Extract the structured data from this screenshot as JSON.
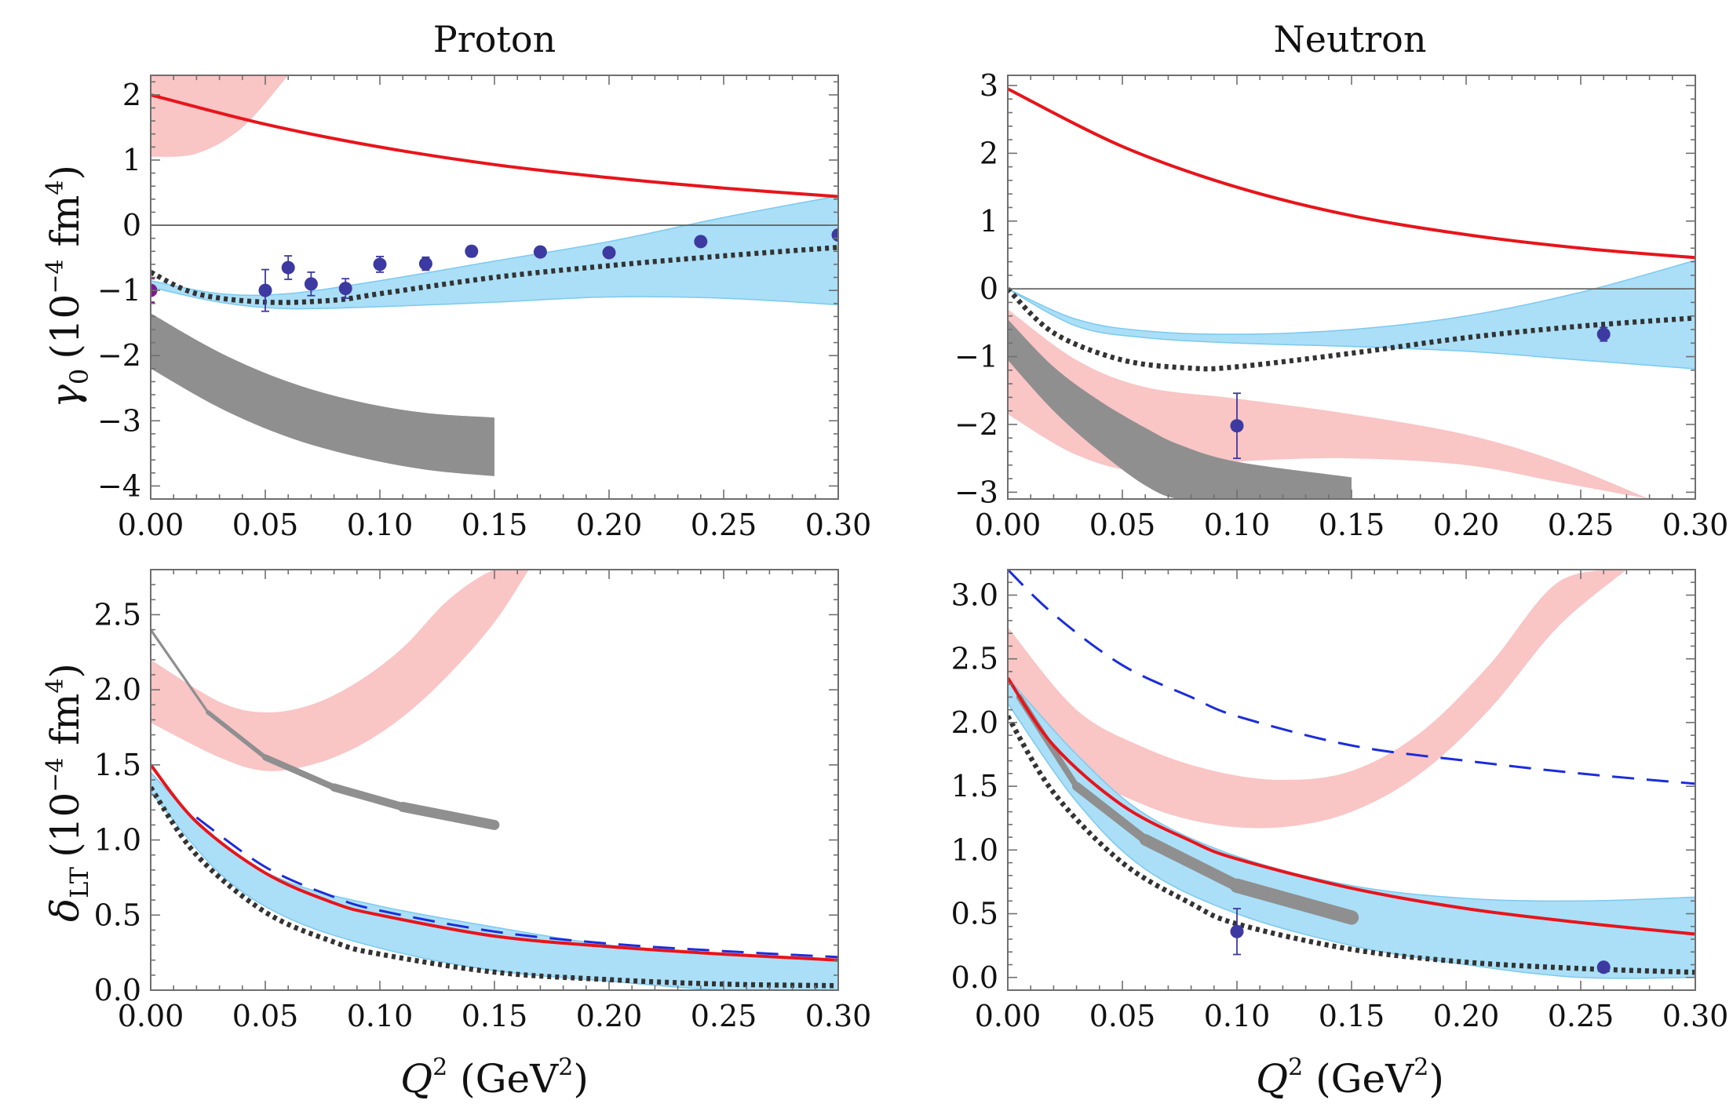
{
  "colors": {
    "theory_red": "#e8141b",
    "pink_band": "#f9c5c5",
    "blue_band": "#aadff7",
    "blue_band_edge": "#7cc9ef",
    "gray_band": "#8f8f8f",
    "dotted": "#333333",
    "dashed_blue": "#1b2ddc",
    "data_points": "#3c3aa0",
    "data_point_special": "#80198e",
    "zero_line": "#666666"
  },
  "figure": {
    "titles": [
      "Proton",
      "Neutron"
    ],
    "ylabel_top": {
      "sym": "γ",
      "sub": "0",
      "units": "(10",
      "exp": "−4",
      "units2": " fm",
      "exp2": "4",
      "close": ")"
    },
    "ylabel_bottom": {
      "sym": "δ",
      "sub": "LT",
      "units": "(10",
      "exp": "−4",
      "units2": " fm",
      "exp2": "4",
      "close": ")"
    },
    "xlabel": {
      "sym": "Q",
      "exp": "2",
      "units": " (GeV",
      "exp2": "2",
      "close": ")"
    }
  },
  "chart_data": [
    {
      "id": "proton-gamma0",
      "type": "line",
      "title": "Proton",
      "xlim": [
        0,
        0.3
      ],
      "ylim": [
        -4.2,
        2.3
      ],
      "xticks": [
        0,
        0.05,
        0.1,
        0.15,
        0.2,
        0.25,
        0.3
      ],
      "xtick_labels": [
        "0.00",
        "0.05",
        "0.10",
        "0.15",
        "0.20",
        "0.25",
        "0.30"
      ],
      "yticks": [
        -4,
        -3,
        -2,
        -1,
        0,
        1,
        2
      ],
      "ytick_labels": [
        "−4",
        "−3",
        "−2",
        "−1",
        "0",
        "1",
        "2"
      ],
      "zero_line": true,
      "bands": [
        {
          "name": "pink",
          "x": [
            0,
            0.02,
            0.04,
            0.06
          ],
          "lower": [
            1.05,
            1.1,
            1.5,
            2.3
          ],
          "upper": [
            2.3,
            2.3,
            2.3,
            2.3
          ]
        },
        {
          "name": "gray",
          "x": [
            0,
            0.03,
            0.06,
            0.09,
            0.12,
            0.15
          ],
          "lower": [
            -2.2,
            -2.8,
            -3.25,
            -3.55,
            -3.75,
            -3.85
          ],
          "upper": [
            -1.35,
            -1.95,
            -2.4,
            -2.7,
            -2.88,
            -2.95
          ]
        },
        {
          "name": "blue",
          "x": [
            0,
            0.03,
            0.06,
            0.1,
            0.15,
            0.2,
            0.25,
            0.3
          ],
          "lower": [
            -0.95,
            -1.18,
            -1.28,
            -1.25,
            -1.18,
            -1.1,
            -1.12,
            -1.22
          ],
          "upper": [
            -0.85,
            -1.05,
            -1.05,
            -0.85,
            -0.55,
            -0.25,
            0.12,
            0.45
          ]
        }
      ],
      "series": [
        {
          "name": "red-solid",
          "style": "solid",
          "x": [
            0,
            0.05,
            0.1,
            0.15,
            0.2,
            0.25,
            0.3
          ],
          "y": [
            2.0,
            1.55,
            1.2,
            0.93,
            0.73,
            0.57,
            0.44
          ]
        },
        {
          "name": "black-dotted",
          "style": "dotted",
          "x": [
            0,
            0.02,
            0.05,
            0.08,
            0.1,
            0.15,
            0.2,
            0.25,
            0.3
          ],
          "y": [
            -0.72,
            -1.05,
            -1.18,
            -1.15,
            -1.05,
            -0.8,
            -0.62,
            -0.47,
            -0.34
          ]
        }
      ],
      "points": [
        {
          "x": 0.0,
          "y": -1.0,
          "err": 0.18,
          "special": true
        },
        {
          "x": 0.05,
          "y": -1.0,
          "err": 0.32
        },
        {
          "x": 0.06,
          "y": -0.65,
          "err": 0.18
        },
        {
          "x": 0.07,
          "y": -0.9,
          "err": 0.18
        },
        {
          "x": 0.085,
          "y": -0.97,
          "err": 0.15
        },
        {
          "x": 0.1,
          "y": -0.6,
          "err": 0.12
        },
        {
          "x": 0.12,
          "y": -0.59,
          "err": 0.1
        },
        {
          "x": 0.14,
          "y": -0.4,
          "err": 0.08
        },
        {
          "x": 0.17,
          "y": -0.41,
          "err": 0.06
        },
        {
          "x": 0.2,
          "y": -0.42,
          "err": 0.05
        },
        {
          "x": 0.24,
          "y": -0.25,
          "err": 0.05
        },
        {
          "x": 0.3,
          "y": -0.15,
          "err": 0.05
        }
      ]
    },
    {
      "id": "neutron-gamma0",
      "type": "line",
      "title": "Neutron",
      "xlim": [
        0,
        0.3
      ],
      "ylim": [
        -3.1,
        3.15
      ],
      "xticks": [
        0,
        0.05,
        0.1,
        0.15,
        0.2,
        0.25,
        0.3
      ],
      "xtick_labels": [
        "0.00",
        "0.05",
        "0.10",
        "0.15",
        "0.20",
        "0.25",
        "0.30"
      ],
      "yticks": [
        -3,
        -2,
        -1,
        0,
        1,
        2,
        3
      ],
      "ytick_labels": [
        "−3",
        "−2",
        "−1",
        "0",
        "1",
        "2",
        "3"
      ],
      "zero_line": true,
      "bands": [
        {
          "name": "pink",
          "x": [
            0,
            0.03,
            0.06,
            0.1,
            0.15,
            0.2,
            0.24,
            0.28
          ],
          "lower": [
            -1.85,
            -2.45,
            -2.7,
            -2.55,
            -2.5,
            -2.6,
            -2.85,
            -3.1
          ],
          "upper": [
            -0.3,
            -1.05,
            -1.45,
            -1.62,
            -1.85,
            -2.15,
            -2.55,
            -3.1
          ]
        },
        {
          "name": "gray",
          "x": [
            0,
            0.02,
            0.04,
            0.06,
            0.075,
            0.1,
            0.15
          ],
          "lower": [
            -1.05,
            -1.8,
            -2.4,
            -2.9,
            -3.1,
            -3.1,
            -3.1
          ],
          "upper": [
            -0.45,
            -1.15,
            -1.65,
            -2.05,
            -2.3,
            -2.55,
            -2.78
          ]
        },
        {
          "name": "blue",
          "x": [
            0,
            0.03,
            0.06,
            0.1,
            0.15,
            0.2,
            0.25,
            0.3
          ],
          "lower": [
            0,
            -0.55,
            -0.72,
            -0.8,
            -0.85,
            -0.92,
            -1.05,
            -1.18
          ],
          "upper": [
            0,
            -0.45,
            -0.62,
            -0.67,
            -0.6,
            -0.4,
            -0.05,
            0.42
          ]
        }
      ],
      "series": [
        {
          "name": "red-solid",
          "style": "solid",
          "x": [
            0,
            0.05,
            0.1,
            0.15,
            0.2,
            0.25,
            0.3
          ],
          "y": [
            2.95,
            2.1,
            1.5,
            1.08,
            0.8,
            0.6,
            0.46
          ]
        },
        {
          "name": "black-dotted",
          "style": "dotted",
          "x": [
            0,
            0.02,
            0.05,
            0.08,
            0.1,
            0.15,
            0.2,
            0.25,
            0.3
          ],
          "y": [
            0,
            -0.65,
            -1.05,
            -1.17,
            -1.15,
            -0.95,
            -0.72,
            -0.55,
            -0.43
          ]
        }
      ],
      "points": [
        {
          "x": 0.1,
          "y": -2.02,
          "err": 0.48
        },
        {
          "x": 0.26,
          "y": -0.67,
          "err": 0.1
        }
      ]
    },
    {
      "id": "proton-deltaLT",
      "type": "line",
      "title": "",
      "xlim": [
        0,
        0.3
      ],
      "ylim": [
        0,
        2.8
      ],
      "xticks": [
        0,
        0.05,
        0.1,
        0.15,
        0.2,
        0.25,
        0.3
      ],
      "xtick_labels": [
        "0.00",
        "0.05",
        "0.10",
        "0.15",
        "0.20",
        "0.25",
        "0.30"
      ],
      "yticks": [
        0,
        0.5,
        1,
        1.5,
        2,
        2.5
      ],
      "ytick_labels": [
        "0.0",
        "0.5",
        "1.0",
        "1.5",
        "2.0",
        "2.5"
      ],
      "zero_line": false,
      "bands": [
        {
          "name": "pink",
          "x": [
            0,
            0.03,
            0.05,
            0.07,
            0.09,
            0.11,
            0.13,
            0.15,
            0.165
          ],
          "lower": [
            1.78,
            1.55,
            1.46,
            1.5,
            1.62,
            1.82,
            2.1,
            2.45,
            2.8
          ],
          "upper": [
            2.2,
            1.92,
            1.85,
            1.9,
            2.05,
            2.28,
            2.6,
            2.8,
            2.8
          ]
        },
        {
          "name": "blue",
          "x": [
            0,
            0.03,
            0.06,
            0.1,
            0.15,
            0.2,
            0.25,
            0.3
          ],
          "lower": [
            1.32,
            0.78,
            0.48,
            0.28,
            0.13,
            0.06,
            0.0,
            0.0
          ],
          "upper": [
            1.45,
            0.98,
            0.72,
            0.56,
            0.42,
            0.3,
            0.24,
            0.2
          ]
        }
      ],
      "thick_lines": [
        {
          "name": "gray-band-line",
          "x": [
            0,
            0.025,
            0.05,
            0.08,
            0.11,
            0.15
          ],
          "y": [
            2.4,
            1.85,
            1.55,
            1.35,
            1.22,
            1.1
          ],
          "width_start": 2,
          "width_end": 14
        }
      ],
      "series": [
        {
          "name": "red-solid",
          "style": "solid",
          "x": [
            0,
            0.02,
            0.05,
            0.08,
            0.1,
            0.15,
            0.2,
            0.25,
            0.3
          ],
          "y": [
            1.5,
            1.12,
            0.78,
            0.58,
            0.5,
            0.36,
            0.29,
            0.24,
            0.2
          ]
        },
        {
          "name": "blue-dashed",
          "style": "dashed",
          "x": [
            0.02,
            0.05,
            0.08,
            0.1,
            0.15,
            0.2,
            0.25,
            0.3
          ],
          "y": [
            1.15,
            0.82,
            0.62,
            0.53,
            0.39,
            0.31,
            0.26,
            0.22
          ]
        },
        {
          "name": "black-dotted",
          "style": "dotted",
          "x": [
            0,
            0.02,
            0.05,
            0.08,
            0.1,
            0.15,
            0.2,
            0.25,
            0.3
          ],
          "y": [
            1.35,
            0.9,
            0.52,
            0.32,
            0.24,
            0.12,
            0.07,
            0.04,
            0.03
          ]
        }
      ],
      "points": []
    },
    {
      "id": "neutron-deltaLT",
      "type": "line",
      "title": "",
      "xlim": [
        0,
        0.3
      ],
      "ylim": [
        -0.1,
        3.2
      ],
      "xticks": [
        0,
        0.05,
        0.1,
        0.15,
        0.2,
        0.25,
        0.3
      ],
      "xtick_labels": [
        "0.00",
        "0.05",
        "0.10",
        "0.15",
        "0.20",
        "0.25",
        "0.30"
      ],
      "yticks": [
        0,
        0.5,
        1,
        1.5,
        2,
        2.5,
        3
      ],
      "ytick_labels": [
        "0.0",
        "0.5",
        "1.0",
        "1.5",
        "2.0",
        "2.5",
        "3.0"
      ],
      "zero_line": false,
      "bands": [
        {
          "name": "pink",
          "x": [
            0,
            0.03,
            0.06,
            0.09,
            0.12,
            0.15,
            0.18,
            0.21,
            0.24,
            0.27
          ],
          "lower": [
            2.3,
            1.65,
            1.35,
            1.2,
            1.18,
            1.3,
            1.6,
            2.1,
            2.75,
            3.2
          ],
          "upper": [
            2.75,
            2.1,
            1.8,
            1.62,
            1.55,
            1.62,
            1.92,
            2.45,
            3.1,
            3.2
          ]
        },
        {
          "name": "blue",
          "x": [
            0,
            0.03,
            0.06,
            0.1,
            0.15,
            0.2,
            0.25,
            0.3
          ],
          "lower": [
            2.15,
            1.38,
            0.85,
            0.5,
            0.25,
            0.1,
            0.0,
            0.0
          ],
          "upper": [
            2.35,
            1.75,
            1.28,
            0.95,
            0.72,
            0.62,
            0.6,
            0.63
          ]
        }
      ],
      "thick_lines": [
        {
          "name": "gray-band-line",
          "x": [
            0.005,
            0.03,
            0.06,
            0.1,
            0.15
          ],
          "y": [
            2.2,
            1.5,
            1.08,
            0.72,
            0.47
          ],
          "width_start": 6,
          "width_end": 20
        }
      ],
      "series": [
        {
          "name": "blue-dashed",
          "style": "dashed",
          "x": [
            0,
            0.02,
            0.05,
            0.08,
            0.1,
            0.15,
            0.2,
            0.25,
            0.3
          ],
          "y": [
            3.2,
            2.85,
            2.45,
            2.2,
            2.05,
            1.82,
            1.7,
            1.6,
            1.52
          ]
        },
        {
          "name": "red-solid",
          "style": "solid",
          "x": [
            0,
            0.02,
            0.05,
            0.08,
            0.1,
            0.15,
            0.2,
            0.25,
            0.3
          ],
          "y": [
            2.35,
            1.82,
            1.35,
            1.07,
            0.93,
            0.7,
            0.54,
            0.43,
            0.34
          ]
        },
        {
          "name": "black-dotted",
          "style": "dotted",
          "x": [
            0,
            0.02,
            0.05,
            0.08,
            0.1,
            0.15,
            0.2,
            0.25,
            0.3
          ],
          "y": [
            2.05,
            1.45,
            0.9,
            0.58,
            0.42,
            0.22,
            0.12,
            0.07,
            0.04
          ]
        }
      ],
      "points": [
        {
          "x": 0.1,
          "y": 0.36,
          "err": 0.18
        },
        {
          "x": 0.26,
          "y": 0.08,
          "err": 0.03
        }
      ]
    }
  ]
}
